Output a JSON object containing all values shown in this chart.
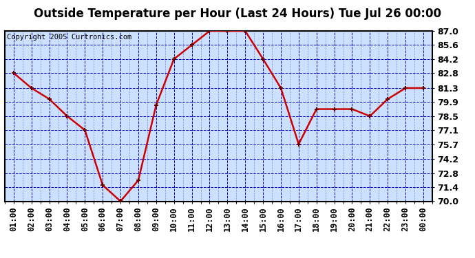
{
  "title": "Outside Temperature per Hour (Last 24 Hours) Tue Jul 26 00:00",
  "copyright": "Copyright 2005 Curtronics.com",
  "x_labels": [
    "01:00",
    "02:00",
    "03:00",
    "04:00",
    "05:00",
    "06:00",
    "07:00",
    "08:00",
    "09:00",
    "10:00",
    "11:00",
    "12:00",
    "13:00",
    "14:00",
    "15:00",
    "16:00",
    "17:00",
    "18:00",
    "19:00",
    "20:00",
    "21:00",
    "22:00",
    "23:00",
    "00:00"
  ],
  "y_values": [
    82.8,
    81.3,
    80.2,
    78.5,
    77.1,
    71.6,
    70.0,
    72.1,
    79.6,
    84.2,
    85.6,
    87.0,
    87.0,
    87.0,
    84.2,
    81.3,
    75.7,
    79.2,
    79.2,
    79.2,
    78.5,
    80.2,
    81.3,
    81.3
  ],
  "ylim_min": 70.0,
  "ylim_max": 87.0,
  "yticks": [
    70.0,
    71.4,
    72.8,
    74.2,
    75.7,
    77.1,
    78.5,
    79.9,
    81.3,
    82.8,
    84.2,
    85.6,
    87.0
  ],
  "line_color": "#cc0000",
  "marker_color": "#660000",
  "plot_bg": "#cce0ff",
  "grid_color_major": "#0000bb",
  "grid_color_minor": "#6666cc",
  "title_fontsize": 12,
  "copyright_fontsize": 7.5,
  "tick_fontsize": 8.5,
  "ytick_fontsize": 9
}
